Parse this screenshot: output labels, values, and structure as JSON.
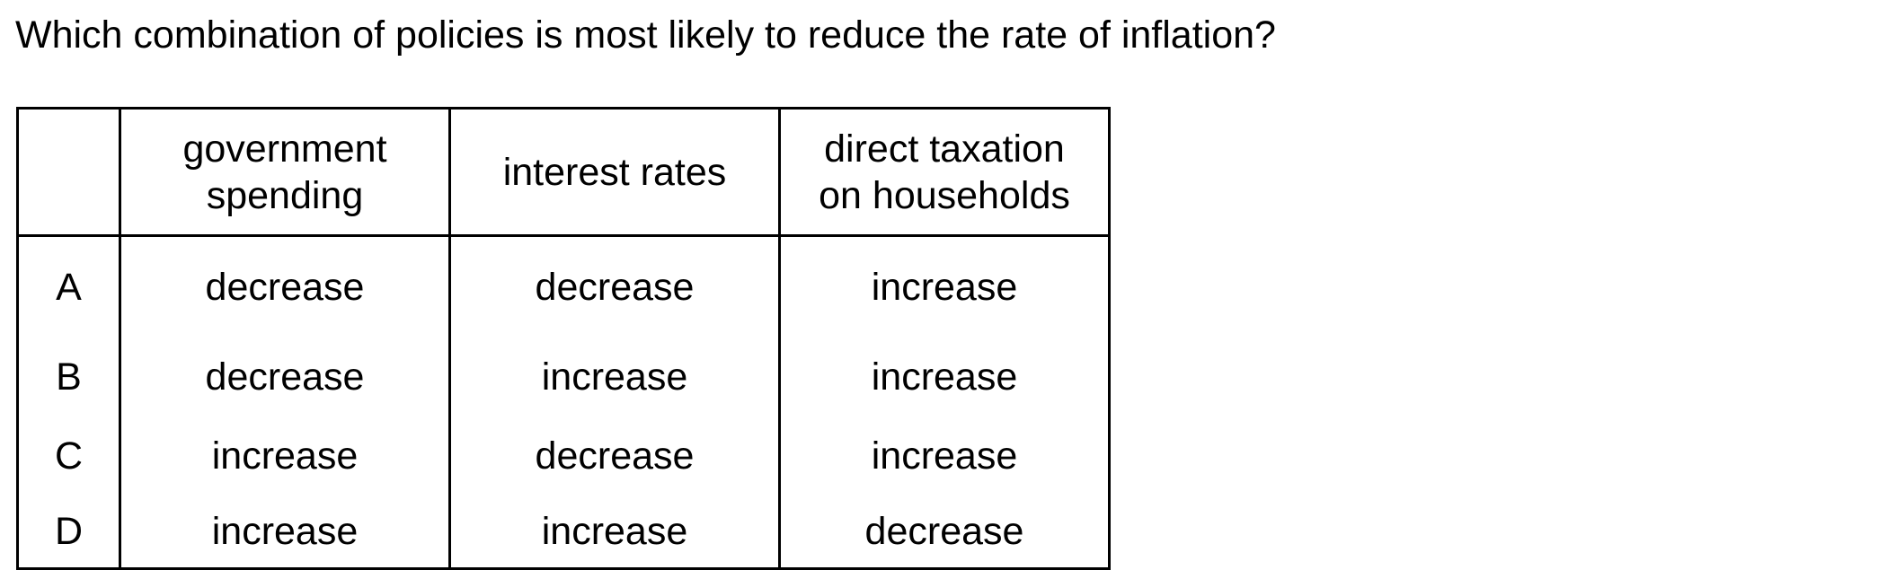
{
  "question": "Which combination of policies is most likely to reduce the rate of inflation?",
  "table": {
    "headers": [
      "",
      [
        "government",
        "spending"
      ],
      [
        "interest rates"
      ],
      [
        "direct taxation",
        "on households"
      ]
    ],
    "rows": [
      {
        "letter": "A",
        "government_spending": "decrease",
        "interest_rates": "decrease",
        "direct_taxation": "increase"
      },
      {
        "letter": "B",
        "government_spending": "decrease",
        "interest_rates": "increase",
        "direct_taxation": "increase"
      },
      {
        "letter": "C",
        "government_spending": "increase",
        "interest_rates": "decrease",
        "direct_taxation": "increase"
      },
      {
        "letter": "D",
        "government_spending": "increase",
        "interest_rates": "increase",
        "direct_taxation": "decrease"
      }
    ]
  }
}
